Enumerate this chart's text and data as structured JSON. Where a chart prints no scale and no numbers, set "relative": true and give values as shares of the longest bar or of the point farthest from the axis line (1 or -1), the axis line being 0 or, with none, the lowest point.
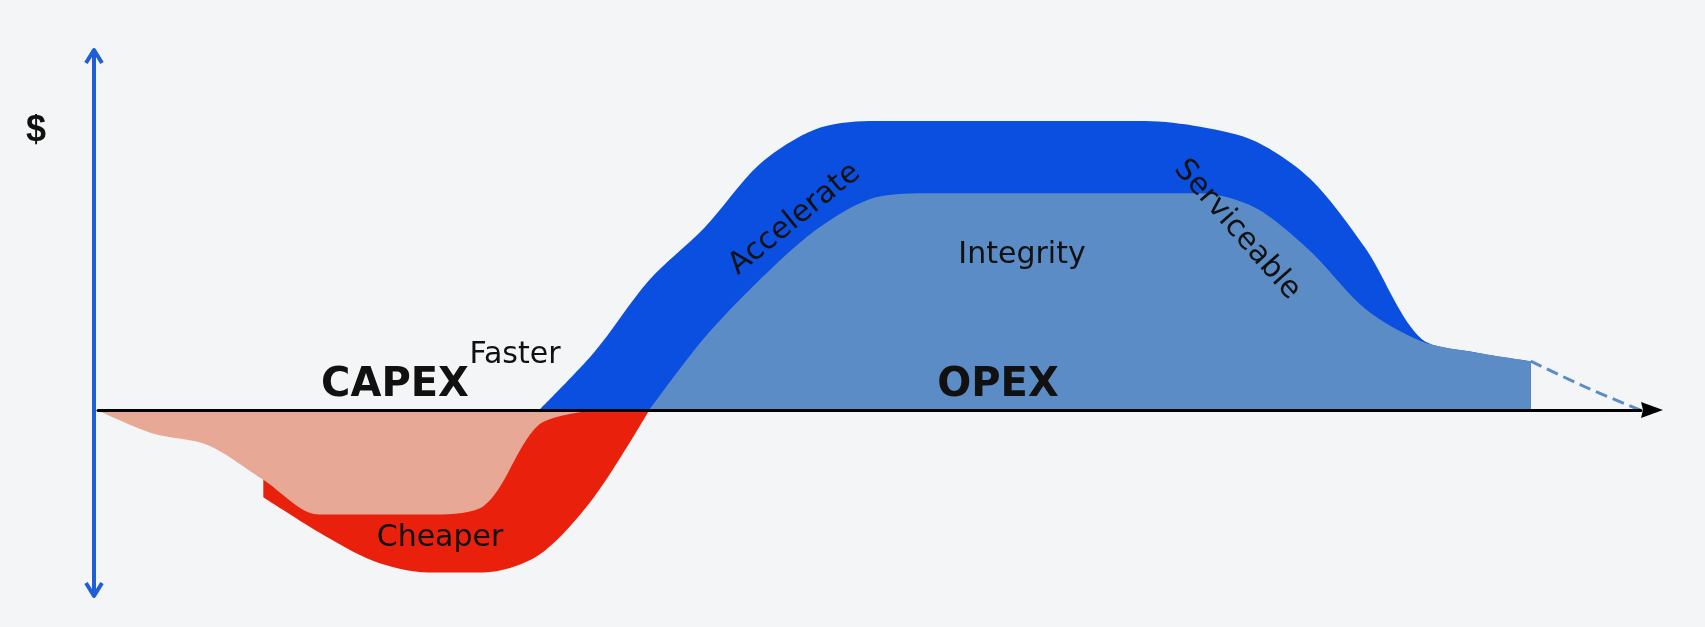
{
  "chart_data": {
    "type": "area",
    "relative": true,
    "ylabel": "$",
    "categories": [
      null,
      null,
      null,
      null,
      null,
      null,
      null,
      null,
      null,
      null,
      null,
      null,
      null,
      null,
      null,
      null,
      null,
      null,
      null,
      null,
      null,
      null,
      null,
      null,
      null,
      null,
      null,
      null,
      null
    ],
    "series": [
      {
        "color": "#e8200c",
        "values": [
          null,
          null,
          null,
          -0.3,
          -0.42,
          -0.52,
          -0.56,
          -0.56,
          -0.5,
          -0.3,
          0,
          null,
          null,
          null,
          null,
          null,
          null,
          null,
          null,
          null,
          null,
          null,
          null,
          null,
          null,
          null,
          null,
          null,
          null
        ]
      },
      {
        "color": "#e8a896",
        "values": [
          0,
          -0.08,
          -0.12,
          -0.24,
          -0.36,
          -0.36,
          -0.36,
          -0.33,
          -0.05,
          0,
          null,
          null,
          null,
          null,
          null,
          null,
          null,
          null,
          null,
          null,
          null,
          null,
          null,
          null,
          null,
          null,
          null,
          null,
          null
        ]
      },
      {
        "color": "#0a4fe0",
        "values": [
          null,
          null,
          null,
          null,
          null,
          null,
          null,
          null,
          0,
          0.2,
          0.45,
          0.63,
          0.85,
          0.97,
          1,
          1,
          1,
          1,
          1,
          1,
          0.98,
          0.93,
          0.8,
          0.56,
          0.25,
          0.2,
          0.17,
          null,
          null
        ]
      },
      {
        "color": "#5b8cc6",
        "values": [
          null,
          null,
          null,
          null,
          null,
          null,
          null,
          null,
          null,
          null,
          0,
          0.25,
          0.45,
          0.62,
          0.73,
          0.75,
          0.75,
          0.75,
          0.75,
          0.75,
          0.75,
          0.7,
          0.55,
          0.35,
          0.24,
          0.2,
          0.17,
          null,
          null
        ]
      },
      {
        "type": "line",
        "line_style": "dashed",
        "color": "#5b8cc6",
        "values": [
          null,
          null,
          null,
          null,
          null,
          null,
          null,
          null,
          null,
          null,
          null,
          null,
          null,
          null,
          null,
          null,
          null,
          null,
          null,
          null,
          null,
          null,
          null,
          null,
          null,
          null,
          0.17,
          0.08,
          0
        ]
      }
    ],
    "annotations": [
      "CAPEX",
      "OPEX",
      "Faster",
      "Cheaper",
      "Accelerate",
      "Integrity",
      "Serviceable"
    ]
  }
}
